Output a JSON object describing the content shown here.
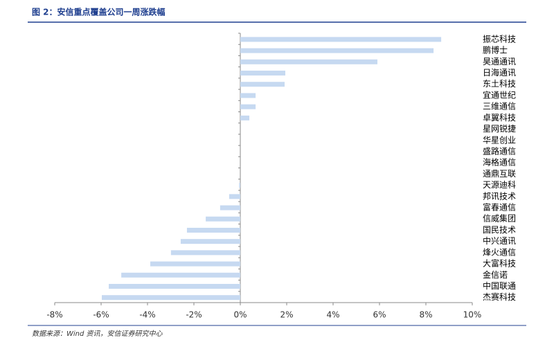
{
  "chart_data": {
    "type": "bar",
    "orientation": "horizontal",
    "title": "图 2：安信重点覆盖公司一周涨跌幅",
    "source": "数据来源：Wind 资讯，安信证券研究中心",
    "categories": [
      "振芯科技",
      "鹏博士",
      "昊通通讯",
      "日海通讯",
      "东土科技",
      "宜通世纪",
      "三维通信",
      "卓翼科技",
      "星网锐捷",
      "华星创业",
      "盛路通信",
      "海格通信",
      "通鼎互联",
      "天源迪科",
      "邦讯技术",
      "富春通信",
      "信威集团",
      "国民技术",
      "中兴通讯",
      "烽火通信",
      "大富科技",
      "金信诺",
      "中国联通",
      "杰赛科技"
    ],
    "values": [
      8.66,
      8.33,
      5.91,
      1.94,
      1.91,
      0.66,
      0.66,
      0.39,
      0,
      0,
      0,
      0,
      0,
      -0.05,
      -0.48,
      -0.87,
      -1.49,
      -2.3,
      -2.57,
      -2.99,
      -3.88,
      -5.13,
      -5.67,
      -5.97
    ],
    "color": "#c6d9f1",
    "xlim": [
      -8,
      10
    ],
    "xticks": [
      {
        "value": -8,
        "label": "-8%"
      },
      {
        "value": -6,
        "label": "-6%"
      },
      {
        "value": -4,
        "label": "-4%"
      },
      {
        "value": -2,
        "label": "-2%"
      },
      {
        "value": 0,
        "label": "0%"
      },
      {
        "value": 2,
        "label": "2%"
      },
      {
        "value": 4,
        "label": "4%"
      },
      {
        "value": 6,
        "label": "6%"
      },
      {
        "value": 8,
        "label": "8%"
      },
      {
        "value": 10,
        "label": "10%"
      }
    ]
  }
}
